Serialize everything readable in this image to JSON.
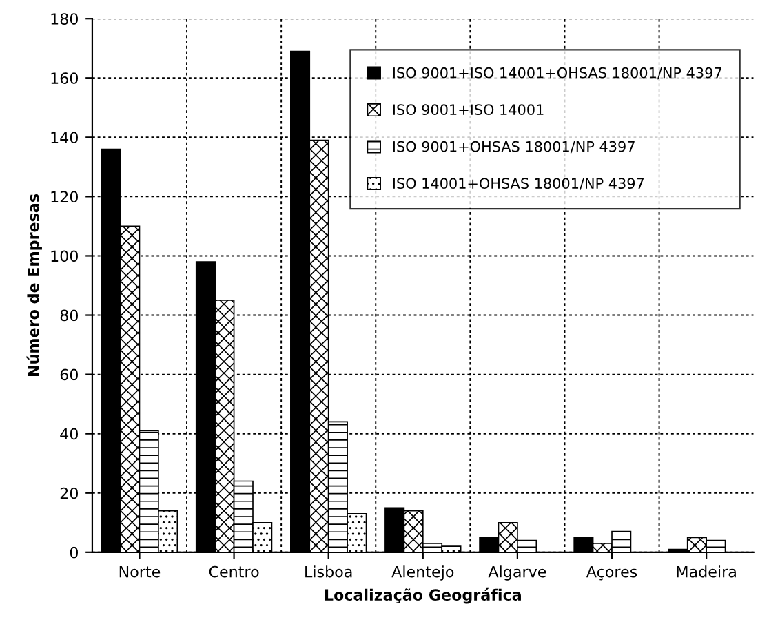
{
  "chart_data": {
    "type": "bar",
    "xlabel": "Localização Geográfica",
    "ylabel": "Número de Empresas",
    "categories": [
      "Norte",
      "Centro",
      "Lisboa",
      "Alentejo",
      "Algarve",
      "Açores",
      "Madeira"
    ],
    "series": [
      {
        "name": "ISO 9001+ISO 14001+OHSAS 18001/NP 4397",
        "color": "#000000",
        "values": [
          136,
          98,
          169,
          15,
          5,
          5,
          1
        ]
      },
      {
        "name": "ISO 9001+ISO 14001",
        "color": "#000000",
        "values": [
          110,
          85,
          139,
          14,
          10,
          3,
          5
        ]
      },
      {
        "name": "ISO 9001+OHSAS 18001/NP 4397",
        "color": "#000000",
        "values": [
          41,
          24,
          44,
          3,
          4,
          7,
          4
        ]
      },
      {
        "name": "ISO 14001+OHSAS 18001/NP 4397",
        "color": "#000000",
        "values": [
          14,
          10,
          13,
          2,
          null,
          null,
          null
        ]
      }
    ],
    "ylim": [
      0,
      180
    ],
    "yticks": [
      0,
      20,
      40,
      60,
      80,
      100,
      120,
      140,
      160,
      180
    ],
    "grid": true,
    "legend": "top right"
  }
}
